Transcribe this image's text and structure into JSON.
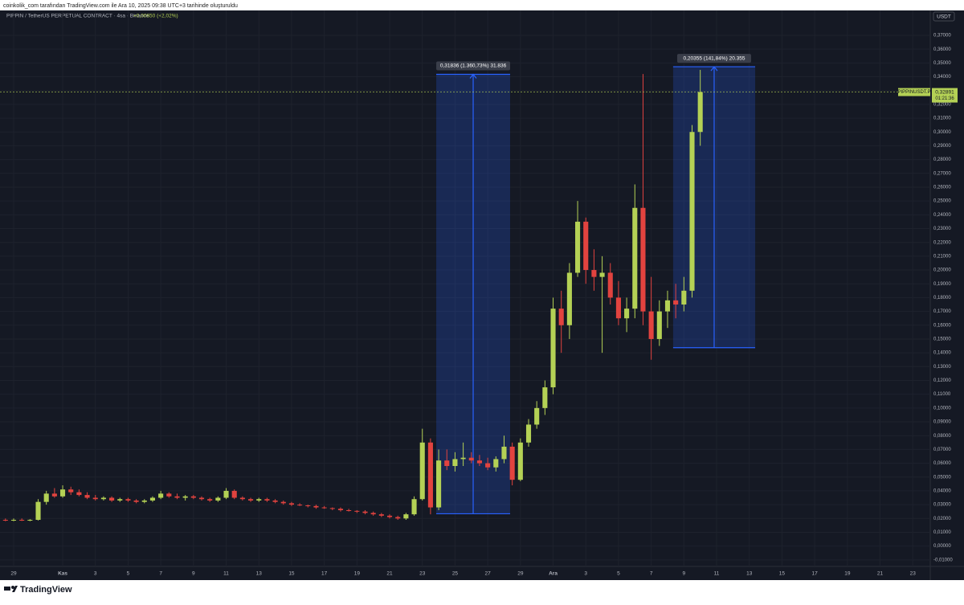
{
  "header": {
    "caption": "coinkolik_com tarafından TradingView.com ile Ara 10, 2025 09:38 UTC+3 tarihinde oluşturuldu"
  },
  "chart_data": {
    "type": "candlestick",
    "title": "PIPPIN / TetherUS PERPETUAL CONTRACT · 4sa · Binance",
    "change_label": "+0,00650 (+2,02%)",
    "y_axis_unit": "USDT",
    "x": [
      -0.5,
      0,
      0.5,
      1,
      1.5,
      2,
      2.5,
      3,
      3.5,
      4,
      4.5,
      5,
      5.5,
      6,
      6.5,
      7,
      7.5,
      8,
      8.5,
      9,
      9.5,
      10,
      10.5,
      11,
      11.5,
      12,
      12.5,
      13,
      13.5,
      14,
      14.5,
      15,
      15.5,
      16,
      16.5,
      17,
      17.5,
      18,
      18.5,
      19,
      19.5,
      20,
      20.5,
      21,
      21.5,
      22,
      22.5,
      23,
      23.5,
      24,
      24.5,
      25,
      25.5,
      26,
      26.5,
      27,
      27.5,
      28,
      28.5,
      29,
      29.5,
      30,
      30.5,
      31,
      31.5,
      32,
      32.5,
      33,
      33.5,
      34,
      34.5,
      35,
      35.5,
      36,
      36.5,
      37,
      37.5,
      38,
      38.5,
      39,
      39.5,
      40,
      40.5,
      41,
      41.5,
      42
    ],
    "open": [
      0.019,
      0.0185,
      0.019,
      0.0188,
      0.019,
      0.032,
      0.038,
      0.036,
      0.041,
      0.039,
      0.037,
      0.035,
      0.034,
      0.035,
      0.033,
      0.034,
      0.033,
      0.032,
      0.033,
      0.035,
      0.038,
      0.036,
      0.035,
      0.036,
      0.035,
      0.034,
      0.033,
      0.035,
      0.04,
      0.035,
      0.034,
      0.033,
      0.034,
      0.033,
      0.032,
      0.031,
      0.03,
      0.0295,
      0.029,
      0.028,
      0.0275,
      0.027,
      0.026,
      0.0255,
      0.025,
      0.024,
      0.023,
      0.022,
      0.021,
      0.02,
      0.023,
      0.034,
      0.075,
      0.028,
      0.062,
      0.058,
      0.063,
      0.064,
      0.062,
      0.06,
      0.057,
      0.063,
      0.072,
      0.048,
      0.075,
      0.088,
      0.1,
      0.115,
      0.172,
      0.16,
      0.198,
      0.235,
      0.2,
      0.195,
      0.198,
      0.18,
      0.165,
      0.172,
      0.245,
      0.17,
      0.15,
      0.17,
      0.178,
      0.175,
      0.185,
      0.3
    ],
    "high": [
      0.02,
      0.02,
      0.02,
      0.0195,
      0.034,
      0.04,
      0.042,
      0.044,
      0.043,
      0.041,
      0.039,
      0.037,
      0.036,
      0.036,
      0.035,
      0.035,
      0.034,
      0.034,
      0.036,
      0.04,
      0.039,
      0.038,
      0.037,
      0.037,
      0.036,
      0.035,
      0.036,
      0.042,
      0.041,
      0.036,
      0.035,
      0.035,
      0.035,
      0.034,
      0.033,
      0.032,
      0.031,
      0.03,
      0.03,
      0.029,
      0.028,
      0.028,
      0.027,
      0.026,
      0.026,
      0.025,
      0.024,
      0.023,
      0.022,
      0.024,
      0.036,
      0.085,
      0.078,
      0.07,
      0.07,
      0.068,
      0.075,
      0.068,
      0.066,
      0.064,
      0.065,
      0.08,
      0.075,
      0.078,
      0.092,
      0.105,
      0.12,
      0.18,
      0.185,
      0.205,
      0.25,
      0.238,
      0.215,
      0.21,
      0.205,
      0.192,
      0.18,
      0.262,
      0.342,
      0.195,
      0.178,
      0.185,
      0.19,
      0.195,
      0.305,
      0.345
    ],
    "low": [
      0.018,
      0.018,
      0.0182,
      0.018,
      0.0185,
      0.03,
      0.035,
      0.035,
      0.037,
      0.036,
      0.034,
      0.033,
      0.033,
      0.032,
      0.032,
      0.032,
      0.031,
      0.031,
      0.032,
      0.034,
      0.035,
      0.034,
      0.033,
      0.034,
      0.033,
      0.032,
      0.032,
      0.034,
      0.034,
      0.033,
      0.032,
      0.032,
      0.032,
      0.031,
      0.03,
      0.029,
      0.029,
      0.028,
      0.027,
      0.027,
      0.026,
      0.025,
      0.025,
      0.024,
      0.023,
      0.022,
      0.021,
      0.02,
      0.019,
      0.019,
      0.022,
      0.033,
      0.023,
      0.026,
      0.055,
      0.054,
      0.058,
      0.06,
      0.058,
      0.055,
      0.054,
      0.06,
      0.044,
      0.047,
      0.072,
      0.085,
      0.095,
      0.11,
      0.14,
      0.15,
      0.195,
      0.19,
      0.185,
      0.14,
      0.175,
      0.16,
      0.155,
      0.165,
      0.16,
      0.135,
      0.145,
      0.158,
      0.165,
      0.17,
      0.18,
      0.29
    ],
    "close": [
      0.0185,
      0.019,
      0.0188,
      0.019,
      0.032,
      0.038,
      0.036,
      0.041,
      0.039,
      0.037,
      0.035,
      0.034,
      0.035,
      0.033,
      0.034,
      0.033,
      0.032,
      0.033,
      0.035,
      0.038,
      0.036,
      0.035,
      0.036,
      0.035,
      0.034,
      0.033,
      0.035,
      0.04,
      0.035,
      0.034,
      0.033,
      0.034,
      0.033,
      0.032,
      0.031,
      0.03,
      0.0295,
      0.029,
      0.028,
      0.0275,
      0.027,
      0.026,
      0.0255,
      0.025,
      0.024,
      0.023,
      0.022,
      0.021,
      0.02,
      0.023,
      0.034,
      0.075,
      0.028,
      0.062,
      0.058,
      0.063,
      0.064,
      0.062,
      0.06,
      0.057,
      0.063,
      0.072,
      0.048,
      0.075,
      0.088,
      0.1,
      0.115,
      0.172,
      0.16,
      0.198,
      0.235,
      0.2,
      0.195,
      0.198,
      0.18,
      0.165,
      0.172,
      0.245,
      0.17,
      0.15,
      0.17,
      0.178,
      0.175,
      0.185,
      0.3,
      0.32891
    ],
    "up_color": "#b4d155",
    "down_color": "#e2433f",
    "grid": true,
    "xlim": [
      -0.835,
      56.07
    ],
    "xticks": [
      {
        "value": 0,
        "label": "29"
      },
      {
        "value": 3,
        "label": "Kas"
      },
      {
        "value": 5,
        "label": "3"
      },
      {
        "value": 7,
        "label": "5"
      },
      {
        "value": 9,
        "label": "7"
      },
      {
        "value": 11,
        "label": "9"
      },
      {
        "value": 13,
        "label": "11"
      },
      {
        "value": 15,
        "label": "13"
      },
      {
        "value": 17,
        "label": "15"
      },
      {
        "value": 19,
        "label": "17"
      },
      {
        "value": 21,
        "label": "19"
      },
      {
        "value": 23,
        "label": "21"
      },
      {
        "value": 25,
        "label": "23"
      },
      {
        "value": 27,
        "label": "25"
      },
      {
        "value": 29,
        "label": "27"
      },
      {
        "value": 31,
        "label": "29"
      },
      {
        "value": 33,
        "label": "Ara"
      },
      {
        "value": 35,
        "label": "3"
      },
      {
        "value": 37,
        "label": "5"
      },
      {
        "value": 39,
        "label": "7"
      },
      {
        "value": 41,
        "label": "9"
      },
      {
        "value": 43,
        "label": "11"
      },
      {
        "value": 45,
        "label": "13"
      },
      {
        "value": 47,
        "label": "15"
      },
      {
        "value": 49,
        "label": "17"
      },
      {
        "value": 51,
        "label": "19"
      },
      {
        "value": 53,
        "label": "21"
      },
      {
        "value": 55,
        "label": "23"
      }
    ],
    "ylim": [
      -0.01476,
      0.38804
    ],
    "yticks": [
      {
        "value": 0.37,
        "label": "0,37000"
      },
      {
        "value": 0.36,
        "label": "0,36000"
      },
      {
        "value": 0.35,
        "label": "0,35000"
      },
      {
        "value": 0.34,
        "label": "0,34000"
      },
      {
        "value": 0.33,
        "label": "0,33000"
      },
      {
        "value": 0.32,
        "label": "0,32000"
      },
      {
        "value": 0.31,
        "label": "0,31000"
      },
      {
        "value": 0.3,
        "label": "0,30000"
      },
      {
        "value": 0.29,
        "label": "0,29000"
      },
      {
        "value": 0.28,
        "label": "0,28000"
      },
      {
        "value": 0.27,
        "label": "0,27000"
      },
      {
        "value": 0.26,
        "label": "0,26000"
      },
      {
        "value": 0.25,
        "label": "0,25000"
      },
      {
        "value": 0.24,
        "label": "0,24000"
      },
      {
        "value": 0.23,
        "label": "0,23000"
      },
      {
        "value": 0.22,
        "label": "0,22000"
      },
      {
        "value": 0.21,
        "label": "0,21000"
      },
      {
        "value": 0.2,
        "label": "0,20000"
      },
      {
        "value": 0.19,
        "label": "0,19000"
      },
      {
        "value": 0.18,
        "label": "0,18000"
      },
      {
        "value": 0.17,
        "label": "0,17000"
      },
      {
        "value": 0.16,
        "label": "0,16000"
      },
      {
        "value": 0.15,
        "label": "0,15000"
      },
      {
        "value": 0.14,
        "label": "0,14000"
      },
      {
        "value": 0.13,
        "label": "0,13000"
      },
      {
        "value": 0.12,
        "label": "0,12000"
      },
      {
        "value": 0.11,
        "label": "0,11000"
      },
      {
        "value": 0.1,
        "label": "0,10000"
      },
      {
        "value": 0.09,
        "label": "0,09000"
      },
      {
        "value": 0.08,
        "label": "0,08000"
      },
      {
        "value": 0.07,
        "label": "0,07000"
      },
      {
        "value": 0.06,
        "label": "0,06000"
      },
      {
        "value": 0.05,
        "label": "0,05000"
      },
      {
        "value": 0.04,
        "label": "0,04000"
      },
      {
        "value": 0.03,
        "label": "0,03000"
      },
      {
        "value": 0.02,
        "label": "0,02000"
      },
      {
        "value": 0.01,
        "label": "0,01000"
      },
      {
        "value": 0,
        "label": "0,00000"
      },
      {
        "value": -0.01,
        "label": "-0,01000"
      }
    ],
    "last_price": {
      "value": 0.32891,
      "label": "0,32891",
      "symbol": "PIPPINUSDT.P",
      "countdown": "01:21:36"
    },
    "measures": [
      {
        "x": [
          25.85,
          30.37
        ],
        "y": [
          0.0234,
          0.34176
        ],
        "label": "0,31836 (1.360,73%) 31.836"
      },
      {
        "x": [
          40.34,
          45.36
        ],
        "y": [
          0.1437,
          0.34725
        ],
        "label": "0,20355 (141,84%) 20.355"
      }
    ]
  },
  "footer": {
    "brand": "TradingView"
  }
}
